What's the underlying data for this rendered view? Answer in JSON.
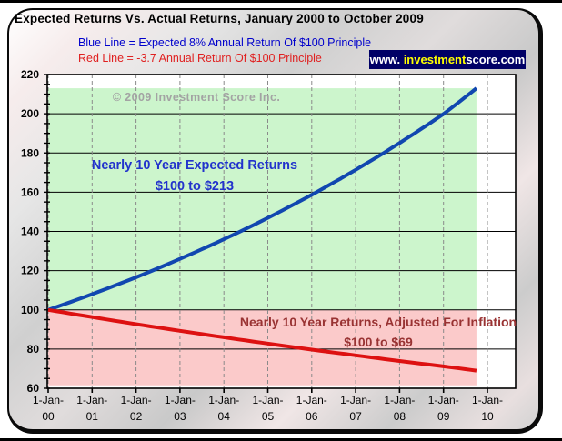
{
  "title": "Expected Returns Vs. Actual Returns, January 2000 to October 2009",
  "legend": {
    "blue": "Blue Line = Expected 8% Annual Return Of $100 Principle",
    "red": "Red Line = -3.7 Annual Return Of $100 Principle"
  },
  "banner": {
    "prefix": "www. ",
    "highlight": "investment",
    "suffix": "score.com"
  },
  "watermark": "© 2009 Investment Score Inc.",
  "annotations": {
    "expected": {
      "line1": "Nearly 10 Year Expected Returns",
      "line2": "$100 to $213"
    },
    "actual": {
      "line1": "Nearly 10 Year Returns, Adjusted For Inflation",
      "line2": "$100 to $69"
    }
  },
  "colors": {
    "blue_line": "#1147b0",
    "red_line": "#dd1111",
    "green_band": "#ccf5cc",
    "pink_band": "#fbcaca",
    "banner_bg": "#000066",
    "banner_highlight": "#ffff00",
    "legend_blue": "#0000cc",
    "legend_red": "#e02020",
    "annotation_blue": "#2233cc",
    "annotation_dark_red": "#993333",
    "watermark_gray": "#a3a3a3",
    "grid_dash_gray": "#8a8a8a"
  },
  "chart_data": {
    "type": "line",
    "title": "Expected Returns Vs. Actual Returns, January 2000 to October 2009",
    "xlabel": "",
    "ylabel": "",
    "ylim": [
      60,
      220
    ],
    "xlim_years": [
      0,
      10.65
    ],
    "grid": {
      "h_major_values": [
        80,
        100,
        120,
        140,
        160,
        180,
        200
      ],
      "v_year_lines": [
        0,
        1,
        2,
        3,
        4,
        5,
        6,
        7,
        8,
        9,
        10
      ],
      "y_minor_step": 5
    },
    "y_ticks": [
      60,
      80,
      100,
      120,
      140,
      160,
      180,
      200,
      220
    ],
    "x_tick_labels": [
      [
        "1-Jan-",
        "00"
      ],
      [
        "1-Jan-",
        "01"
      ],
      [
        "1-Jan-",
        "02"
      ],
      [
        "1-Jan-",
        "03"
      ],
      [
        "1-Jan-",
        "04"
      ],
      [
        "1-Jan-",
        "05"
      ],
      [
        "1-Jan-",
        "06"
      ],
      [
        "1-Jan-",
        "07"
      ],
      [
        "1-Jan-",
        "08"
      ],
      [
        "1-Jan-",
        "09"
      ],
      [
        "1-Jan-",
        "10"
      ]
    ],
    "x_years": [
      0,
      1,
      2,
      3,
      4,
      5,
      6,
      7,
      8,
      9,
      9.75
    ],
    "series": [
      {
        "id": "expected-line",
        "name": "Expected 8% Annual Return Of $100 Principle",
        "color": "#1147b0",
        "values": [
          100,
          108,
          116.6,
          126,
          136,
          146.9,
          158.7,
          171.4,
          185.1,
          199.9,
          213
        ]
      },
      {
        "id": "actual-line",
        "name": "-3.7 Annual Return Of $100 Principle",
        "color": "#dd1111",
        "values": [
          100,
          96.3,
          92.7,
          89.3,
          86,
          82.8,
          79.7,
          76.8,
          73.9,
          71.2,
          69
        ]
      }
    ],
    "bands": [
      {
        "id": "expected-zone-band",
        "color": "#ccf5cc",
        "value_from": 100,
        "value_to": 213,
        "year_from": 0,
        "year_to": 9.75
      },
      {
        "id": "inflation-zone-band",
        "color": "#fbcaca",
        "value_from": 61.5,
        "value_to": 100,
        "year_from": 0,
        "year_to": 9.75
      }
    ]
  }
}
